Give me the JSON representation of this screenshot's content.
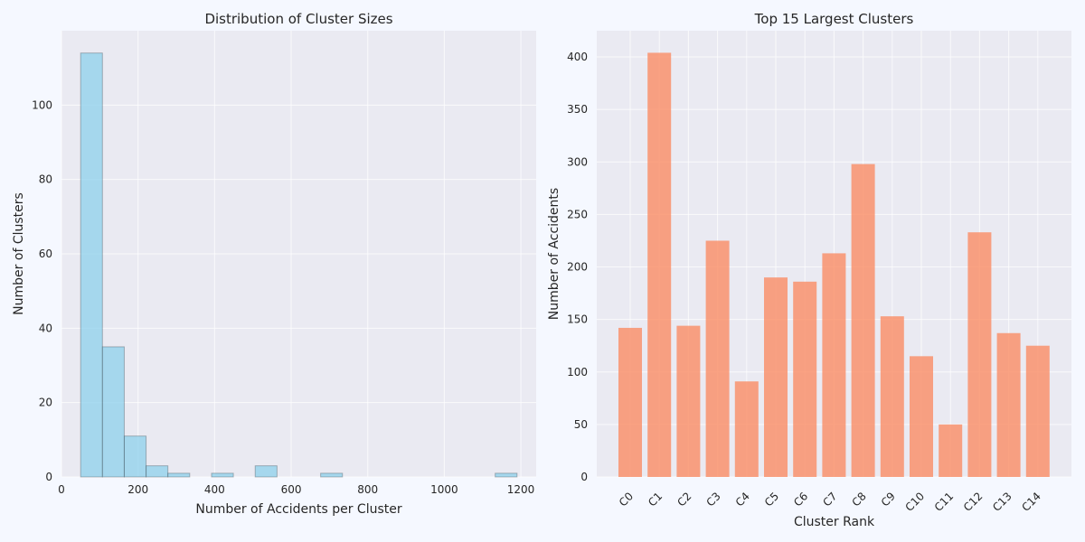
{
  "chart_data": [
    {
      "type": "bar",
      "subtype": "histogram",
      "title": "Distribution of Cluster Sizes",
      "xlabel": "Number of Accidents per Cluster",
      "ylabel": "Number of Clusters",
      "xlim": [
        0,
        1240
      ],
      "ylim": [
        0,
        120
      ],
      "xticks": [
        0,
        200,
        400,
        600,
        800,
        1000,
        1200
      ],
      "yticks": [
        0,
        20,
        40,
        60,
        80,
        100
      ],
      "bins": [
        {
          "x0": 50,
          "x1": 107,
          "count": 114
        },
        {
          "x0": 107,
          "x1": 164,
          "count": 35
        },
        {
          "x0": 164,
          "x1": 221,
          "count": 11
        },
        {
          "x0": 221,
          "x1": 278,
          "count": 3
        },
        {
          "x0": 278,
          "x1": 335,
          "count": 1
        },
        {
          "x0": 392,
          "x1": 449,
          "count": 1
        },
        {
          "x0": 506,
          "x1": 563,
          "count": 3
        },
        {
          "x0": 677,
          "x1": 734,
          "count": 1
        },
        {
          "x0": 1133,
          "x1": 1190,
          "count": 1
        }
      ],
      "grid": true,
      "color": "#87ceeb"
    },
    {
      "type": "bar",
      "title": "Top 15 Largest Clusters",
      "xlabel": "Cluster Rank",
      "ylabel": "Number of Accidents",
      "categories": [
        "C0",
        "C1",
        "C2",
        "C3",
        "C4",
        "C5",
        "C6",
        "C7",
        "C8",
        "C9",
        "C10",
        "C11",
        "C12",
        "C13",
        "C14"
      ],
      "values": [
        142,
        404,
        144,
        225,
        91,
        190,
        186,
        213,
        298,
        153,
        115,
        50,
        233,
        137,
        125
      ],
      "ylim": [
        0,
        425
      ],
      "yticks": [
        0,
        50,
        100,
        150,
        200,
        250,
        300,
        350,
        400
      ],
      "grid": true,
      "color": "#fa8c64"
    }
  ]
}
